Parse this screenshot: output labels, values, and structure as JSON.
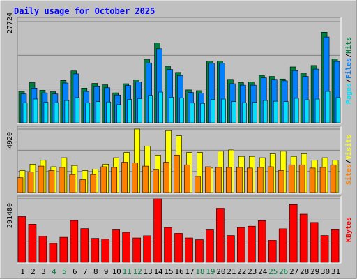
{
  "title": "Daily usage for October 2025",
  "colors": {
    "background": "#c0c0c0",
    "title": "#0000ff",
    "hits": "#008040",
    "files": "#0080ff",
    "pages": "#00e0ff",
    "visits": "#ffff00",
    "sites": "#ff8000",
    "kbytes": "#ff0000",
    "weekend_day": "#008040",
    "weekday": "#000000"
  },
  "chart_data": [
    {
      "type": "bar",
      "panel": "hits-files-pages",
      "ymax_label": "27724",
      "ylim": [
        0,
        27724
      ],
      "grid": true,
      "legend": [
        "Pages",
        "Files",
        "Hits"
      ],
      "categories": [
        "1",
        "2",
        "3",
        "4",
        "5",
        "6",
        "7",
        "8",
        "9",
        "10",
        "11",
        "12",
        "13",
        "14",
        "15",
        "16",
        "17",
        "18",
        "19",
        "20",
        "21",
        "22",
        "23",
        "24",
        "25",
        "26",
        "27",
        "28",
        "29",
        "30",
        "31"
      ],
      "series": [
        {
          "name": "Hits",
          "values": [
            8600,
            11000,
            8900,
            8500,
            11600,
            14200,
            9500,
            10800,
            10400,
            8200,
            10700,
            11800,
            17400,
            21900,
            15500,
            13800,
            9000,
            8800,
            16900,
            16900,
            11900,
            11000,
            11200,
            13000,
            12700,
            12000,
            15300,
            13600,
            15700,
            24800,
            17500
          ]
        },
        {
          "name": "Files",
          "values": [
            7900,
            9500,
            8200,
            7900,
            10900,
            13400,
            8600,
            9900,
            9600,
            7600,
            10200,
            11200,
            16400,
            20300,
            14600,
            12900,
            8300,
            8100,
            16300,
            16300,
            10700,
            10300,
            10300,
            12300,
            11900,
            11500,
            14300,
            12700,
            14700,
            23500,
            16800
          ]
        },
        {
          "name": "Pages",
          "values": [
            5500,
            6500,
            5600,
            5500,
            6100,
            6900,
            5400,
            5800,
            5700,
            5000,
            6400,
            6600,
            7500,
            8400,
            7000,
            6800,
            5400,
            5300,
            6400,
            6500,
            5800,
            5500,
            5600,
            6100,
            5900,
            5800,
            6700,
            6300,
            6500,
            8600,
            6900
          ]
        }
      ]
    },
    {
      "type": "bar",
      "panel": "visits-sites",
      "ymax_label": "4920",
      "ylim": [
        0,
        4920
      ],
      "grid": true,
      "legend": [
        "Sites",
        "Visits"
      ],
      "categories": [
        "1",
        "2",
        "3",
        "4",
        "5",
        "6",
        "7",
        "8",
        "9",
        "10",
        "11",
        "12",
        "13",
        "14",
        "15",
        "16",
        "17",
        "18",
        "19",
        "20",
        "21",
        "22",
        "23",
        "24",
        "25",
        "26",
        "27",
        "28",
        "29",
        "30",
        "31"
      ],
      "series": [
        {
          "name": "Visits",
          "values": [
            1700,
            2200,
            2500,
            2000,
            2700,
            2100,
            1700,
            1800,
            2200,
            2700,
            3100,
            4920,
            3600,
            2900,
            4800,
            4400,
            3100,
            3100,
            1900,
            3200,
            3300,
            2800,
            2800,
            2700,
            3000,
            3200,
            2800,
            3000,
            2500,
            2700,
            2500
          ]
        },
        {
          "name": "Sites",
          "values": [
            1150,
            1600,
            2050,
            1700,
            1950,
            1400,
            1000,
            1400,
            2000,
            1950,
            2350,
            2300,
            2050,
            1750,
            2350,
            2900,
            2150,
            1250,
            2000,
            1950,
            1950,
            1950,
            1900,
            1950,
            2000,
            1700,
            2150,
            2150,
            1900,
            1950,
            2150
          ]
        }
      ]
    },
    {
      "type": "bar",
      "panel": "kbytes",
      "ymax_label": "291480",
      "ylim": [
        0,
        291480
      ],
      "grid": true,
      "legend": [
        "KBytes"
      ],
      "categories": [
        "1",
        "2",
        "3",
        "4",
        "5",
        "6",
        "7",
        "8",
        "9",
        "10",
        "11",
        "12",
        "13",
        "14",
        "15",
        "16",
        "17",
        "18",
        "19",
        "20",
        "21",
        "22",
        "23",
        "24",
        "25",
        "26",
        "27",
        "28",
        "29",
        "30",
        "31"
      ],
      "series": [
        {
          "name": "KBytes",
          "values": [
            210000,
            175000,
            120000,
            87000,
            115000,
            192000,
            155000,
            110000,
            107000,
            149000,
            138000,
            112000,
            122000,
            291480,
            160000,
            133000,
            112000,
            104000,
            149000,
            248000,
            123000,
            160000,
            166000,
            191000,
            101000,
            154000,
            265000,
            221000,
            183000,
            123000,
            150000
          ]
        }
      ]
    }
  ],
  "xaxis": {
    "labels": [
      "1",
      "2",
      "3",
      "4",
      "5",
      "6",
      "7",
      "8",
      "9",
      "10",
      "11",
      "12",
      "13",
      "14",
      "15",
      "16",
      "17",
      "18",
      "19",
      "20",
      "21",
      "22",
      "23",
      "24",
      "25",
      "26",
      "27",
      "28",
      "29",
      "30",
      "31"
    ],
    "weekend_flags": [
      0,
      0,
      0,
      1,
      1,
      0,
      0,
      0,
      0,
      0,
      1,
      1,
      0,
      0,
      0,
      0,
      0,
      1,
      1,
      0,
      0,
      0,
      0,
      0,
      1,
      1,
      0,
      0,
      0,
      0,
      0
    ]
  },
  "legend_right": {
    "panel1": [
      {
        "text": "Hits",
        "color": "#008040"
      },
      {
        "text": "/",
        "color": "#000000"
      },
      {
        "text": "Files",
        "color": "#0080ff"
      },
      {
        "text": "/",
        "color": "#000000"
      },
      {
        "text": "Pages",
        "color": "#00e0ff"
      }
    ],
    "panel2": [
      {
        "text": "Visits",
        "color": "#ffff00"
      },
      {
        "text": "/",
        "color": "#000000"
      },
      {
        "text": "Sites",
        "color": "#ff8000"
      }
    ],
    "panel3": [
      {
        "text": "KBytes",
        "color": "#ff0000"
      }
    ]
  }
}
